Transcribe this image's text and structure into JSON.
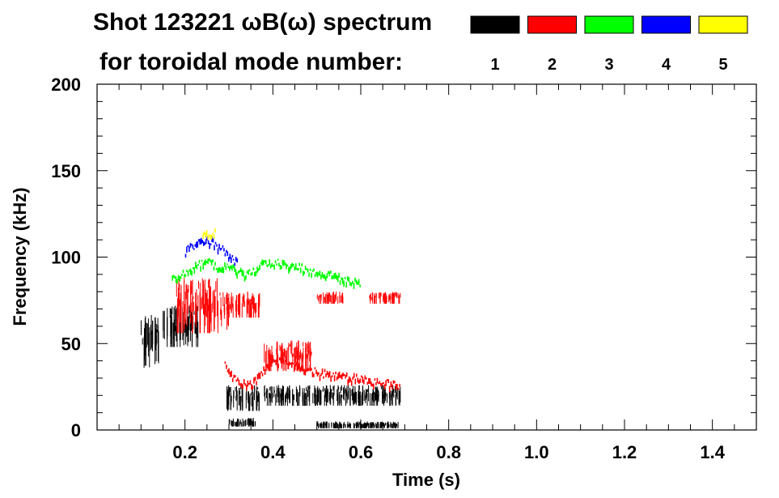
{
  "chart_data": {
    "type": "scatter",
    "title": "Shot 123221 ωB(ω) spectrum",
    "subtitle": "for toroidal mode number:",
    "xlabel": "Time (s)",
    "ylabel": "Frequency (kHz)",
    "xlim": [
      0.0,
      1.5
    ],
    "ylim": [
      0,
      200
    ],
    "grid": false,
    "x_ticks": [
      0.2,
      0.4,
      0.6,
      0.8,
      1.0,
      1.2,
      1.4
    ],
    "x_tick_labels": [
      "0.2",
      "0.4",
      "0.6",
      "0.8",
      "1.0",
      "1.2",
      "1.4"
    ],
    "y_ticks": [
      0,
      50,
      100,
      150,
      200
    ],
    "y_tick_labels": [
      "0",
      "50",
      "100",
      "150",
      "200"
    ],
    "legend": {
      "placement": "top-right",
      "entries": [
        {
          "label": "1",
          "color": "#000000"
        },
        {
          "label": "2",
          "color": "#ff0000"
        },
        {
          "label": "3",
          "color": "#00ff00"
        },
        {
          "label": "4",
          "color": "#0000ff"
        },
        {
          "label": "5",
          "color": "#ffff00"
        }
      ]
    },
    "series": [
      {
        "name": "n=1",
        "color": "#000000",
        "bands": [
          {
            "t0": 0.1,
            "t1": 0.14,
            "f0": 36,
            "f1": 68
          },
          {
            "t0": 0.15,
            "t1": 0.23,
            "f0": 48,
            "f1": 72
          },
          {
            "t0": 0.295,
            "t1": 0.37,
            "f0": 11,
            "f1": 26
          },
          {
            "t0": 0.3,
            "t1": 0.36,
            "f0": 2,
            "f1": 7
          },
          {
            "t0": 0.5,
            "t1": 0.69,
            "f0": 1,
            "f1": 5
          },
          {
            "t0": 0.38,
            "t1": 0.69,
            "f0": 14,
            "f1": 26
          }
        ]
      },
      {
        "name": "n=2",
        "color": "#ff0000",
        "bands": [
          {
            "t0": 0.18,
            "t1": 0.28,
            "f0": 56,
            "f1": 88
          },
          {
            "t0": 0.28,
            "t1": 0.3,
            "f0": 58,
            "f1": 80
          },
          {
            "t0": 0.3,
            "t1": 0.37,
            "f0": 65,
            "f1": 80
          },
          {
            "t0": 0.38,
            "t1": 0.49,
            "f0": 34,
            "f1": 52
          },
          {
            "t0": 0.5,
            "t1": 0.56,
            "f0": 73,
            "f1": 80
          },
          {
            "t0": 0.62,
            "t1": 0.69,
            "f0": 73,
            "f1": 80
          }
        ],
        "curve": {
          "t": [
            0.29,
            0.31,
            0.35,
            0.4,
            0.45,
            0.5,
            0.55,
            0.6,
            0.65,
            0.69
          ],
          "f": [
            40,
            30,
            27,
            41,
            38,
            34,
            32,
            30,
            28,
            26
          ]
        }
      },
      {
        "name": "n=3",
        "color": "#00ff00",
        "curve": {
          "t": [
            0.17,
            0.2,
            0.24,
            0.27,
            0.3,
            0.34,
            0.38,
            0.44,
            0.5,
            0.56,
            0.6
          ],
          "f": [
            88,
            92,
            98,
            96,
            95,
            90,
            98,
            96,
            92,
            88,
            85
          ]
        }
      },
      {
        "name": "n=4",
        "color": "#0000ff",
        "curve": {
          "t": [
            0.2,
            0.23,
            0.26,
            0.29,
            0.32
          ],
          "f": [
            104,
            109,
            110,
            104,
            97
          ]
        }
      },
      {
        "name": "n=5",
        "color": "#ffff00",
        "curve": {
          "t": [
            0.24,
            0.27
          ],
          "f": [
            113,
            115
          ]
        }
      }
    ]
  }
}
